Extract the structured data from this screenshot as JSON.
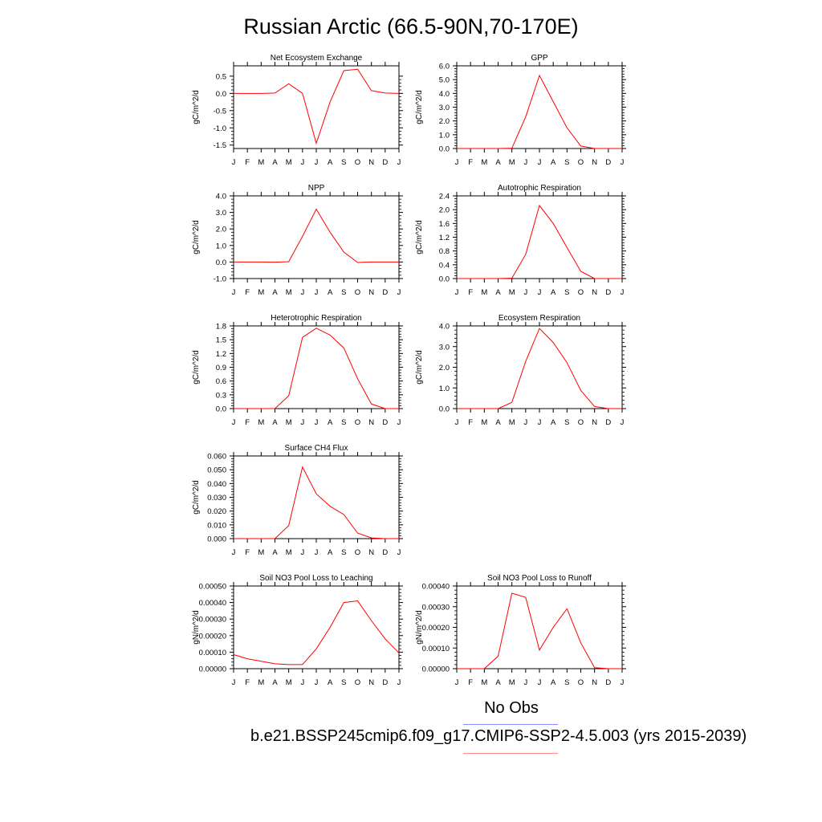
{
  "title": "Russian Arctic (66.5-90N,70-170E)",
  "legend": {
    "obs_label": "No Obs",
    "model_label": "b.e21.BSSP245cmip6.f09_g17.CMIP6-SSP2-4.5.003 (yrs 2015-2039)",
    "obs_color": "#8888ff",
    "model_color": "#ff8888"
  },
  "line_color": "#ff0000",
  "chart_data": [
    {
      "type": "line",
      "title": "Net Ecosystem Exchange",
      "ylabel": "gC/m^2/d",
      "x": [
        "J",
        "F",
        "M",
        "A",
        "M",
        "J",
        "J",
        "A",
        "S",
        "O",
        "N",
        "D",
        "J"
      ],
      "ylim": [
        -1.6,
        0.8
      ],
      "yticks": [
        -1.5,
        -1.0,
        -0.5,
        0.0,
        0.5
      ],
      "yticklabels": [
        "-1.5",
        "-1.0",
        "-0.5",
        "0.0",
        "0.5"
      ],
      "series": [
        {
          "values": [
            0.0,
            0.0,
            0.0,
            0.01,
            0.28,
            0.0,
            -1.45,
            -0.25,
            0.66,
            0.7,
            0.08,
            0.01,
            0.0
          ]
        }
      ]
    },
    {
      "type": "line",
      "title": "GPP",
      "ylabel": "gC/m^2/d",
      "x": [
        "J",
        "F",
        "M",
        "A",
        "M",
        "J",
        "J",
        "A",
        "S",
        "O",
        "N",
        "D",
        "J"
      ],
      "ylim": [
        0,
        6.0
      ],
      "yticks": [
        0,
        1,
        2,
        3,
        4,
        5,
        6
      ],
      "yticklabels": [
        "0.0",
        "1.0",
        "2.0",
        "3.0",
        "4.0",
        "5.0",
        "6.0"
      ],
      "series": [
        {
          "values": [
            0.0,
            0.0,
            0.0,
            0.0,
            0.02,
            2.3,
            5.3,
            3.4,
            1.5,
            0.18,
            0.0,
            0.0,
            0.0
          ]
        }
      ]
    },
    {
      "type": "line",
      "title": "NPP",
      "ylabel": "gC/m^2/d",
      "x": [
        "J",
        "F",
        "M",
        "A",
        "M",
        "J",
        "J",
        "A",
        "S",
        "O",
        "N",
        "D",
        "J"
      ],
      "ylim": [
        -1.0,
        4.0
      ],
      "yticks": [
        -1,
        0,
        1,
        2,
        3,
        4
      ],
      "yticklabels": [
        "-1.0",
        "0.0",
        "1.0",
        "2.0",
        "3.0",
        "4.0"
      ],
      "series": [
        {
          "values": [
            0.0,
            0.0,
            0.0,
            -0.01,
            0.02,
            1.55,
            3.2,
            1.8,
            0.6,
            -0.03,
            0.0,
            0.0,
            0.0
          ]
        }
      ]
    },
    {
      "type": "line",
      "title": "Autotrophic Respiration",
      "ylabel": "gC/m^2/d",
      "x": [
        "J",
        "F",
        "M",
        "A",
        "M",
        "J",
        "J",
        "A",
        "S",
        "O",
        "N",
        "D",
        "J"
      ],
      "ylim": [
        0,
        2.4
      ],
      "yticks": [
        0,
        0.4,
        0.8,
        1.2,
        1.6,
        2.0,
        2.4
      ],
      "yticklabels": [
        "0.0",
        "0.4",
        "0.8",
        "1.2",
        "1.6",
        "2.0",
        "2.4"
      ],
      "series": [
        {
          "values": [
            0.0,
            0.0,
            0.0,
            0.0,
            0.01,
            0.7,
            2.12,
            1.6,
            0.9,
            0.21,
            0.0,
            0.0,
            0.0
          ]
        }
      ]
    },
    {
      "type": "line",
      "title": "Heterotrophic Respiration",
      "ylabel": "gC/m^2/d",
      "x": [
        "J",
        "F",
        "M",
        "A",
        "M",
        "J",
        "J",
        "A",
        "S",
        "O",
        "N",
        "D",
        "J"
      ],
      "ylim": [
        0,
        1.8
      ],
      "yticks": [
        0,
        0.3,
        0.6,
        0.9,
        1.2,
        1.5,
        1.8
      ],
      "yticklabels": [
        "0.0",
        "0.3",
        "0.6",
        "0.9",
        "1.2",
        "1.5",
        "1.8"
      ],
      "series": [
        {
          "values": [
            0.0,
            0.0,
            0.0,
            0.0,
            0.28,
            1.55,
            1.75,
            1.6,
            1.32,
            0.65,
            0.1,
            0.0,
            0.0
          ]
        }
      ]
    },
    {
      "type": "line",
      "title": "Ecosystem Respiration",
      "ylabel": "gC/m^2/d",
      "x": [
        "J",
        "F",
        "M",
        "A",
        "M",
        "J",
        "J",
        "A",
        "S",
        "O",
        "N",
        "D",
        "J"
      ],
      "ylim": [
        0,
        4.0
      ],
      "yticks": [
        0,
        1,
        2,
        3,
        4
      ],
      "yticklabels": [
        "0.0",
        "1.0",
        "2.0",
        "3.0",
        "4.0"
      ],
      "series": [
        {
          "values": [
            0.0,
            0.0,
            0.0,
            0.0,
            0.3,
            2.28,
            3.88,
            3.2,
            2.22,
            0.88,
            0.1,
            0.0,
            0.0
          ]
        }
      ]
    },
    {
      "type": "line",
      "title": "Surface CH4 Flux",
      "ylabel": "gC/m^2/d",
      "x": [
        "J",
        "F",
        "M",
        "A",
        "M",
        "J",
        "J",
        "A",
        "S",
        "O",
        "N",
        "D",
        "J"
      ],
      "ylim": [
        0,
        0.06
      ],
      "yticks": [
        0,
        0.01,
        0.02,
        0.03,
        0.04,
        0.05,
        0.06
      ],
      "yticklabels": [
        "0.000",
        "0.010",
        "0.020",
        "0.030",
        "0.040",
        "0.050",
        "0.060"
      ],
      "series": [
        {
          "values": [
            0.0,
            0.0,
            0.0,
            0.0,
            0.0095,
            0.052,
            0.0325,
            0.0235,
            0.0175,
            0.004,
            0.0005,
            0.0,
            0.0
          ]
        }
      ]
    },
    {
      "type": "line",
      "title": "Soil NO3 Pool Loss to Leaching",
      "ylabel": "gN/m^2/d",
      "x": [
        "J",
        "F",
        "M",
        "A",
        "M",
        "J",
        "J",
        "A",
        "S",
        "O",
        "N",
        "D",
        "J"
      ],
      "ylim": [
        0,
        0.0005
      ],
      "yticks": [
        0,
        0.0001,
        0.0002,
        0.0003,
        0.0004,
        0.0005
      ],
      "yticklabels": [
        "0.00000",
        "0.00010",
        "0.00020",
        "0.00030",
        "0.00040",
        "0.00050"
      ],
      "series": [
        {
          "values": [
            8.5e-05,
            6e-05,
            4.5e-05,
            3e-05,
            2.5e-05,
            2.5e-05,
            0.00012,
            0.00025,
            0.0004,
            0.00041,
            0.00029,
            0.00018,
            9.5e-05
          ]
        }
      ]
    },
    {
      "type": "line",
      "title": "Soil NO3 Pool Loss to Runoff",
      "ylabel": "gN/m^2/d",
      "x": [
        "J",
        "F",
        "M",
        "A",
        "M",
        "J",
        "J",
        "A",
        "S",
        "O",
        "N",
        "D",
        "J"
      ],
      "ylim": [
        0,
        0.0004
      ],
      "yticks": [
        0,
        0.0001,
        0.0002,
        0.0003,
        0.0004
      ],
      "yticklabels": [
        "0.00000",
        "0.00010",
        "0.00020",
        "0.00030",
        "0.00040"
      ],
      "series": [
        {
          "values": [
            0.0,
            0.0,
            0.0,
            6e-05,
            0.000365,
            0.000345,
            9e-05,
            0.0002,
            0.00029,
            0.000125,
            5e-06,
            0.0,
            0.0
          ]
        }
      ]
    }
  ]
}
